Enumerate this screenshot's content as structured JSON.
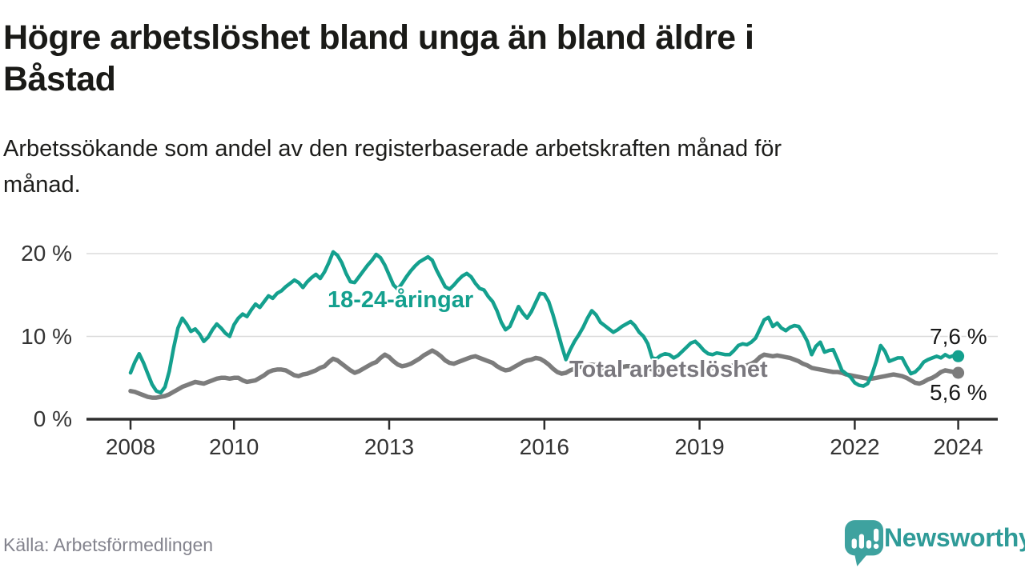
{
  "colors": {
    "accent_teal": "#14A08E",
    "line_gray": "#7C7C7C",
    "grid": "#DBDBDB",
    "axis": "#2E2E2E",
    "tick_text": "#333333",
    "title_text": "#1A1A17",
    "source_text": "#83838D",
    "logo_teal": "#3EA29F",
    "logo_text_teal": "#2F9B98"
  },
  "chart_data": {
    "type": "line",
    "title": "Högre arbetslöshet bland unga än bland äldre i\nBåstad",
    "subtitle": "Arbetssökande som andel av den registerbaserade arbetskraften månad för\nmånad.",
    "source": "Källa: Arbetsförmedlingen",
    "unit": "%",
    "frequency": "monthly",
    "x_range": [
      "2008-01",
      "2024-01"
    ],
    "ylim": [
      0,
      21
    ],
    "grid": "horizontal",
    "legend_position": "inline-labels",
    "y_axis": {
      "ticks": [
        {
          "value": 0,
          "label": "0 %"
        },
        {
          "value": 10,
          "label": "10 %"
        },
        {
          "value": 20,
          "label": "20 %"
        }
      ]
    },
    "x_axis": {
      "ticks": [
        {
          "year": 2008,
          "label": "2008"
        },
        {
          "year": 2010,
          "label": "2010"
        },
        {
          "year": 2013,
          "label": "2013"
        },
        {
          "year": 2016,
          "label": "2016"
        },
        {
          "year": 2019,
          "label": "2019"
        },
        {
          "year": 2022,
          "label": "2022"
        },
        {
          "year": 2024,
          "label": "2024"
        }
      ]
    },
    "series": [
      {
        "name": "18-24-åringar",
        "inline_label": "18-24-åringar",
        "end_label": "7,6 %",
        "end_value": 7.6,
        "color": "#14A08E",
        "values": [
          5.6,
          6.9,
          7.9,
          6.8,
          5.5,
          4.2,
          3.4,
          3.2,
          3.9,
          5.8,
          8.6,
          11.0,
          12.2,
          11.5,
          10.6,
          10.9,
          10.3,
          9.4,
          9.9,
          10.8,
          11.5,
          11.0,
          10.4,
          10.0,
          11.4,
          12.2,
          12.7,
          12.4,
          13.2,
          13.9,
          13.5,
          14.2,
          14.9,
          14.6,
          15.2,
          15.5,
          16.0,
          16.4,
          16.8,
          16.5,
          15.9,
          16.6,
          17.1,
          17.5,
          17.0,
          17.8,
          18.9,
          20.2,
          19.8,
          18.9,
          17.6,
          16.6,
          16.5,
          17.2,
          17.9,
          18.6,
          19.2,
          19.9,
          19.5,
          18.6,
          17.4,
          16.2,
          15.7,
          16.4,
          17.2,
          17.9,
          18.5,
          19.0,
          19.3,
          19.6,
          19.2,
          18.0,
          17.0,
          16.0,
          15.7,
          16.2,
          16.8,
          17.3,
          17.6,
          17.2,
          16.4,
          15.8,
          15.6,
          14.8,
          14.2,
          13.1,
          11.7,
          10.8,
          11.2,
          12.4,
          13.6,
          12.8,
          12.2,
          13.0,
          14.1,
          15.2,
          15.1,
          14.2,
          12.6,
          10.8,
          8.9,
          7.2,
          8.4,
          9.4,
          10.2,
          11.1,
          12.2,
          13.1,
          12.6,
          11.7,
          11.3,
          10.9,
          10.5,
          10.8,
          11.2,
          11.5,
          11.8,
          11.3,
          10.5,
          10.0,
          9.1,
          7.4,
          7.3,
          7.7,
          7.9,
          7.8,
          7.4,
          7.7,
          8.2,
          8.7,
          9.2,
          9.4,
          8.9,
          8.3,
          7.9,
          7.8,
          8.0,
          7.9,
          7.8,
          7.8,
          8.3,
          8.9,
          9.1,
          9.0,
          9.3,
          9.8,
          10.9,
          12.0,
          12.3,
          11.2,
          11.6,
          11.0,
          10.7,
          11.1,
          11.3,
          11.2,
          10.4,
          9.4,
          7.8,
          8.8,
          9.3,
          8.1,
          8.3,
          8.4,
          7.2,
          5.9,
          5.5,
          5.1,
          4.4,
          4.1,
          4.0,
          4.3,
          5.4,
          7.0,
          8.9,
          8.2,
          7.0,
          7.2,
          7.4,
          7.4,
          6.4,
          5.5,
          5.7,
          6.2,
          6.9,
          7.2,
          7.4,
          7.6,
          7.4,
          7.8,
          7.5,
          7.7,
          7.6
        ]
      },
      {
        "name": "Total arbetslöshet",
        "inline_label": "Total arbetslöshet",
        "end_label": "5,6 %",
        "end_value": 5.6,
        "color": "#7C7C7C",
        "values": [
          3.4,
          3.3,
          3.1,
          2.9,
          2.7,
          2.6,
          2.6,
          2.7,
          2.8,
          3.0,
          3.3,
          3.6,
          3.9,
          4.1,
          4.3,
          4.5,
          4.4,
          4.3,
          4.5,
          4.7,
          4.9,
          5.0,
          5.0,
          4.9,
          5.0,
          5.0,
          4.7,
          4.5,
          4.6,
          4.7,
          5.0,
          5.3,
          5.7,
          5.9,
          6.0,
          6.0,
          5.9,
          5.6,
          5.3,
          5.2,
          5.4,
          5.5,
          5.7,
          5.9,
          6.2,
          6.4,
          6.9,
          7.3,
          7.1,
          6.7,
          6.3,
          5.9,
          5.6,
          5.8,
          6.1,
          6.4,
          6.7,
          6.9,
          7.4,
          7.8,
          7.5,
          7.0,
          6.6,
          6.4,
          6.5,
          6.7,
          7.0,
          7.3,
          7.7,
          8.0,
          8.3,
          8.0,
          7.6,
          7.1,
          6.8,
          6.7,
          6.9,
          7.1,
          7.3,
          7.5,
          7.6,
          7.4,
          7.2,
          7.0,
          6.8,
          6.4,
          6.1,
          5.9,
          6.0,
          6.3,
          6.6,
          6.9,
          7.1,
          7.2,
          7.4,
          7.3,
          7.0,
          6.6,
          6.1,
          5.7,
          5.5,
          5.6,
          5.9,
          6.1,
          6.3,
          6.4,
          6.5,
          6.6,
          6.5,
          6.3,
          6.1,
          6.0,
          6.1,
          6.2,
          6.3,
          6.4,
          6.4,
          6.3,
          6.2,
          6.3,
          6.2,
          6.0,
          5.9,
          6.0,
          6.1,
          6.0,
          6.1,
          6.2,
          6.3,
          6.3,
          6.2,
          6.3,
          6.3,
          6.2,
          6.1,
          6.2,
          6.3,
          6.2,
          6.3,
          6.4,
          6.5,
          6.4,
          6.4,
          6.5,
          6.7,
          7.0,
          7.5,
          7.8,
          7.7,
          7.6,
          7.7,
          7.6,
          7.5,
          7.4,
          7.2,
          7.0,
          6.7,
          6.5,
          6.2,
          6.1,
          6.0,
          5.9,
          5.8,
          5.7,
          5.7,
          5.6,
          5.4,
          5.3,
          5.2,
          5.1,
          5.0,
          4.9,
          4.9,
          5.0,
          5.1,
          5.2,
          5.3,
          5.4,
          5.3,
          5.2,
          5.0,
          4.7,
          4.4,
          4.3,
          4.5,
          4.8,
          5.0,
          5.3,
          5.7,
          5.9,
          5.8,
          5.7,
          5.6
        ]
      }
    ]
  },
  "logo": {
    "text": "Newsworthy",
    "icon": "newsworthy-speech-bubble-bar-chart-icon"
  }
}
